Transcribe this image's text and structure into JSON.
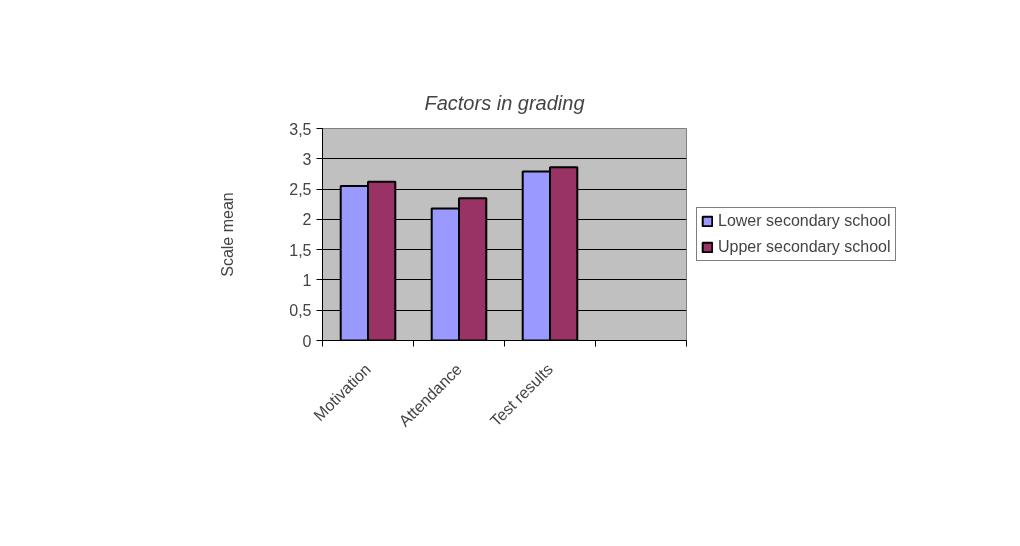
{
  "chart_data": {
    "type": "bar",
    "title": "Factors in grading",
    "ylabel": "Scale mean",
    "categories": [
      "Motivation",
      "Attendance",
      "Test results",
      null
    ],
    "series": [
      {
        "name": "Lower secondary school",
        "color": "#9999ff",
        "values": [
          2.55,
          2.18,
          2.79,
          null
        ]
      },
      {
        "name": "Upper secondary school",
        "color": "#993366",
        "values": [
          2.62,
          2.35,
          2.86,
          null
        ]
      }
    ],
    "ylim": [
      0,
      3.5
    ],
    "yticks": [
      0,
      {
        "value": 0.5,
        "label": "0,5"
      },
      1,
      {
        "value": 1.5,
        "label": "1,5"
      },
      2,
      {
        "value": 2.5,
        "label": "2,5"
      },
      3,
      {
        "value": 3.5,
        "label": "3,5"
      }
    ],
    "grid": "y",
    "legend": "right"
  }
}
